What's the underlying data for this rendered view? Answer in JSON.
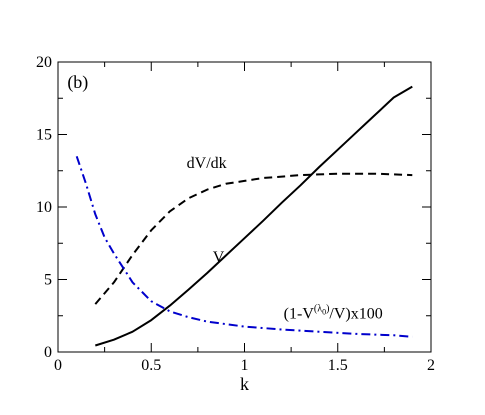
{
  "chart_data": {
    "type": "line",
    "panel_label": "(b)",
    "xlabel": "k",
    "ylabel": "",
    "xlim": [
      0,
      2
    ],
    "ylim": [
      0,
      20
    ],
    "x_ticks": [
      0,
      0.5,
      1,
      1.5,
      2
    ],
    "x_tick_labels": [
      "0",
      "0.5",
      "1",
      "1.5",
      "2"
    ],
    "y_ticks": [
      0,
      5,
      10,
      15,
      20
    ],
    "y_tick_labels": [
      "0",
      "5",
      "10",
      "15",
      "20"
    ],
    "grid": false,
    "series": [
      {
        "name": "V",
        "color": "#000000",
        "dash": "solid",
        "x": [
          0.2,
          0.3,
          0.4,
          0.5,
          0.6,
          0.7,
          0.8,
          0.9,
          1.0,
          1.1,
          1.2,
          1.3,
          1.4,
          1.5,
          1.6,
          1.7,
          1.8,
          1.9
        ],
        "y": [
          0.45,
          0.85,
          1.4,
          2.2,
          3.2,
          4.3,
          5.45,
          6.65,
          7.85,
          9.05,
          10.3,
          11.5,
          12.75,
          13.95,
          15.15,
          16.35,
          17.55,
          18.3
        ]
      },
      {
        "name": "dV/dk",
        "color": "#000000",
        "dash": "dashed",
        "x": [
          0.2,
          0.3,
          0.4,
          0.5,
          0.6,
          0.7,
          0.8,
          0.9,
          1.0,
          1.1,
          1.2,
          1.3,
          1.4,
          1.5,
          1.6,
          1.7,
          1.8,
          1.9
        ],
        "y": [
          3.3,
          4.8,
          6.7,
          8.4,
          9.7,
          10.6,
          11.2,
          11.6,
          11.8,
          12.0,
          12.1,
          12.2,
          12.25,
          12.3,
          12.3,
          12.3,
          12.25,
          12.2
        ]
      },
      {
        "name": "(1-V^(λ0)/V)x100",
        "color": "#0000cc",
        "dash": "dashdot",
        "x": [
          0.1,
          0.15,
          0.2,
          0.25,
          0.3,
          0.4,
          0.5,
          0.6,
          0.7,
          0.8,
          1.0,
          1.2,
          1.4,
          1.6,
          1.8,
          1.9
        ],
        "y": [
          13.5,
          11.6,
          9.5,
          7.9,
          6.8,
          4.8,
          3.5,
          2.8,
          2.4,
          2.1,
          1.75,
          1.55,
          1.4,
          1.25,
          1.15,
          1.05
        ]
      }
    ],
    "annotations": {
      "dvdk": "dV/dk",
      "v": "V",
      "ratio_prefix": "(1-V",
      "ratio_sup": "(λ",
      "ratio_sub": "0",
      "ratio_sup_close": ")",
      "ratio_suffix": "/V)x100"
    }
  }
}
